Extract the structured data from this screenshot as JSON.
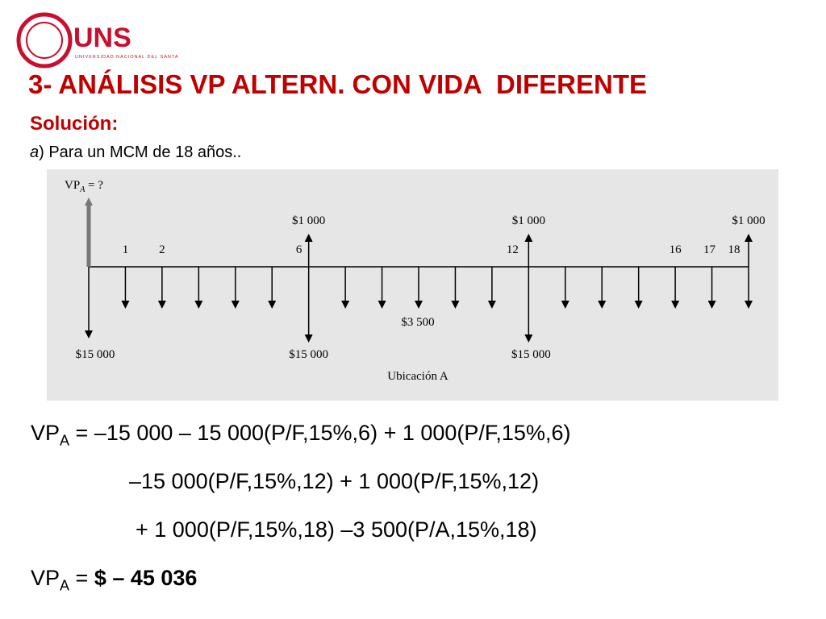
{
  "header": {
    "logo_text": "UNS",
    "logo_subtext": "UNIVERSIDAD NACIONAL DEL SANTA"
  },
  "title": "3- ANÁLISIS VP ALTERN. CON VIDA  DIFERENTE",
  "subtitle": "Solución:",
  "intro": {
    "letter": "a",
    "text": ") Para un MCM de 18 años.."
  },
  "diagram": {
    "pv_label": {
      "main": "VP",
      "sub": "A",
      "rest": " = ?"
    },
    "period_labels": [
      1,
      2,
      6,
      12,
      16,
      17,
      18
    ],
    "receipt_labels": [
      "$1 000",
      "$1 000",
      "$1 000"
    ],
    "cost_labels": [
      "$15 000",
      "$15 000",
      "$15  000"
    ],
    "annual_label": "$3 500",
    "caption": "Ubicación A"
  },
  "equation": {
    "line1": {
      "main": "VP",
      "sub": "A",
      "rest": " = –15 000 – 15 000(P/F,15%,6) + 1 000(P/F,15%,6)"
    },
    "line2": "–15 000(P/F,15%,12) + 1 000(P/F,15%,12)",
    "line3": "+ 1 000(P/F,15%,18) –3 500(P/A,15%,18)",
    "result": {
      "main": "VP",
      "sub": "A",
      "rest": " = ",
      "value": "$ – 45 036"
    }
  }
}
